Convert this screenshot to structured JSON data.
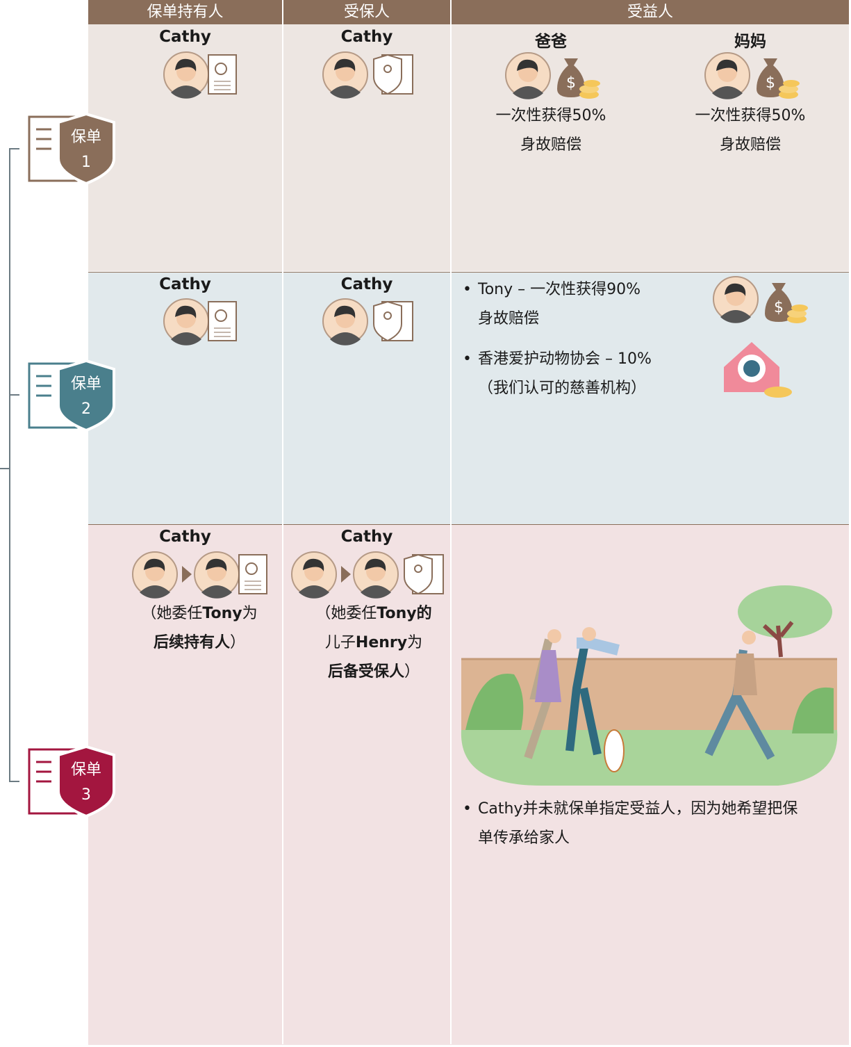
{
  "header": {
    "columns": [
      "保单持有人",
      "受保人",
      "受益人"
    ]
  },
  "policies": [
    {
      "label": "保单",
      "number": "1",
      "holder": "Cathy",
      "insured": "Cathy",
      "beneficiaries": [
        {
          "name": "爸爸",
          "lines": [
            "一次性获得50%",
            "身故赔偿"
          ]
        },
        {
          "name": "妈妈",
          "lines": [
            "一次性获得50%",
            "身故赔偿"
          ]
        }
      ]
    },
    {
      "label": "保单",
      "number": "2",
      "holder": "Cathy",
      "insured": "Cathy",
      "beneficiaries": [
        {
          "lines": [
            "Tony – 一次性获得90%",
            "身故赔偿"
          ]
        },
        {
          "lines": [
            "香港爱护动物协会 – 10%",
            "（我们认可的慈善机构）"
          ]
        }
      ]
    },
    {
      "label": "保单",
      "number": "3",
      "holder": "Cathy",
      "insured": "Cathy",
      "holder_note": [
        "（她委任",
        "Tony",
        "为",
        "后续持有人",
        "）"
      ],
      "insured_note": [
        "（她委任",
        "Tony的",
        "儿子",
        "Henry",
        "为",
        "后备受保人",
        "）"
      ],
      "beneficiary_note": "Cathy并未就保单指定受益人，因为她希望把保单传承给家人"
    }
  ]
}
